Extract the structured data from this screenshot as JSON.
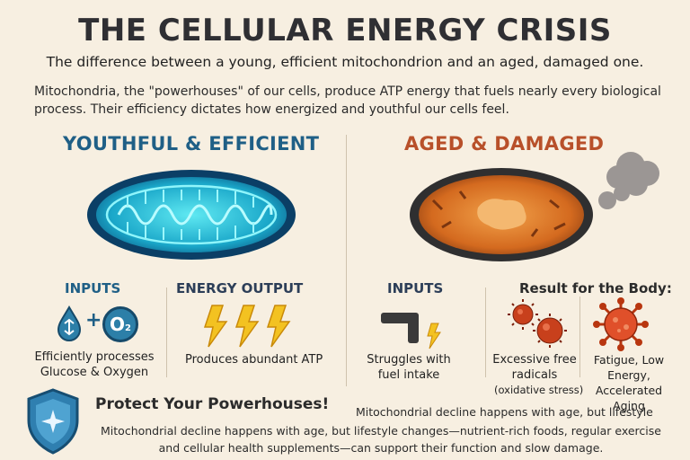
{
  "header": {
    "title": "THE CELLULAR ENERGY CRISIS",
    "subtitle": "The difference between a young, efficient mitochondrion and an aged, damaged one.",
    "intro": "Mitochondria, the \"powerhouses\" of our cells, produce ATP energy that fuels nearly every biological process. Their efficiency dictates how energized and youthful our cells feel."
  },
  "young": {
    "heading": "YOUTHFUL & EFFICIENT",
    "color": "#1f5f86",
    "inputs_label": "INPUTS",
    "inputs_text": "Efficiently processes Glucose & Oxygen",
    "output_label": "ENERGY OUTPUT",
    "output_text": "Produces abundant ATP",
    "oxygen_symbol": "O",
    "oxygen_sub": "2",
    "plus": "+"
  },
  "aged": {
    "heading": "AGED & DAMAGED",
    "color": "#b8502a",
    "inputs_label": "INPUTS",
    "inputs_text": "Struggles with fuel intake",
    "result_label": "Result for the Body:",
    "radicals_text": "Excessive free radicals",
    "radicals_note": "(oxidative stress)",
    "fatigue_text": "Fatigue, Low Energy, Accelerated Aging"
  },
  "footer": {
    "title": "Protect Your Powerhouses!",
    "body_a": "Mitochondrial decline happens with age, but lifestyle",
    "body_b": "Mitochondrial decline happens with age, but lifestyle changes—nutrient-rich foods, regular exercise and cellular health supplements—can support their function and slow damage."
  },
  "icons": [
    "glucose-drop-icon",
    "oxygen-icon",
    "lightning-bolt-icon",
    "pipe-icon",
    "free-radical-icon",
    "virus-icon",
    "shield-icon",
    "smoke-icon"
  ]
}
